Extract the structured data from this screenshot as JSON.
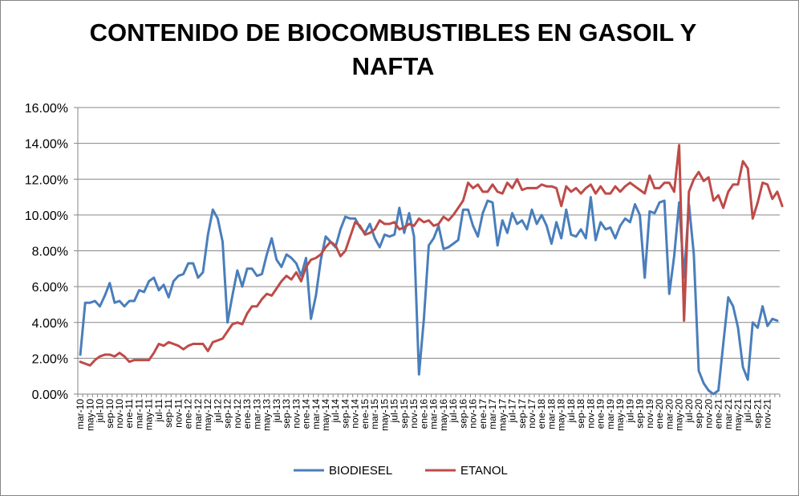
{
  "chart_data": {
    "type": "line",
    "title_lines": [
      "CONTENIDO DE BIOCOMBUSTIBLES EN GASOIL Y",
      "NAFTA"
    ],
    "xlabel": "",
    "ylabel": "",
    "ylim": [
      0,
      0.16
    ],
    "y_ticks": [
      "0.00%",
      "2.00%",
      "4.00%",
      "6.00%",
      "8.00%",
      "10.00%",
      "12.00%",
      "14.00%",
      "16.00%"
    ],
    "x_tick_labels": [
      "mar-10",
      "may-10",
      "jul-10",
      "sep-10",
      "nov-10",
      "ene-11",
      "mar-11",
      "may-11",
      "jul-11",
      "sep-11",
      "nov-11",
      "ene-12",
      "mar-12",
      "may-12",
      "jul-12",
      "sep-12",
      "nov-12",
      "ene-13",
      "mar-13",
      "may-13",
      "jul-13",
      "sep-13",
      "nov-13",
      "ene-14",
      "mar-14",
      "may-14",
      "jul-14",
      "sep-14",
      "nov-14",
      "ene-15",
      "mar-15",
      "may-15",
      "jul-15",
      "sep-15",
      "nov-15",
      "ene-16",
      "mar-16",
      "may-16",
      "jul-16",
      "sep-16",
      "nov-16",
      "ene-17",
      "mar-17",
      "may-17",
      "jul-17",
      "sep-17",
      "nov-17",
      "ene-18",
      "mar-18",
      "may-18",
      "jul-18",
      "sep-18",
      "nov-18",
      "ene-19",
      "mar-19",
      "may-19",
      "jul-19",
      "sep-19",
      "nov-19",
      "ene-20",
      "mar-20",
      "may-20",
      "jul-20",
      "sep-20",
      "nov-20",
      "ene-21",
      "mar-21",
      "may-21",
      "jul-21",
      "sep-21",
      "nov-21"
    ],
    "grid": "horizontal",
    "legend_position": "bottom",
    "series": [
      {
        "name": "BIODIESEL",
        "color": "#4A7EBB",
        "values": [
          0.022,
          0.051,
          0.051,
          0.052,
          0.049,
          0.055,
          0.062,
          0.051,
          0.052,
          0.049,
          0.052,
          0.052,
          0.058,
          0.057,
          0.063,
          0.065,
          0.058,
          0.061,
          0.054,
          0.063,
          0.066,
          0.067,
          0.073,
          0.073,
          0.065,
          0.068,
          0.089,
          0.103,
          0.098,
          0.085,
          0.04,
          0.055,
          0.069,
          0.06,
          0.07,
          0.07,
          0.066,
          0.067,
          0.078,
          0.087,
          0.075,
          0.071,
          0.078,
          0.076,
          0.073,
          0.066,
          0.076,
          0.042,
          0.055,
          0.075,
          0.088,
          0.085,
          0.082,
          0.092,
          0.099,
          0.098,
          0.098,
          0.093,
          0.09,
          0.095,
          0.087,
          0.082,
          0.089,
          0.088,
          0.089,
          0.104,
          0.09,
          0.101,
          0.088,
          0.011,
          0.042,
          0.083,
          0.087,
          0.094,
          0.081,
          0.082,
          0.084,
          0.086,
          0.103,
          0.103,
          0.094,
          0.088,
          0.101,
          0.108,
          0.107,
          0.083,
          0.097,
          0.09,
          0.101,
          0.095,
          0.097,
          0.092,
          0.103,
          0.095,
          0.1,
          0.094,
          0.084,
          0.096,
          0.087,
          0.103,
          0.089,
          0.088,
          0.092,
          0.087,
          0.11,
          0.086,
          0.096,
          0.092,
          0.093,
          0.087,
          0.094,
          0.098,
          0.096,
          0.106,
          0.1,
          0.065,
          0.102,
          0.101,
          0.107,
          0.108,
          0.056,
          0.077,
          0.107,
          0.065,
          0.106,
          0.078,
          0.013,
          0.006,
          0.002,
          0.0,
          0.002,
          0.028,
          0.054,
          0.049,
          0.037,
          0.015,
          0.008,
          0.04,
          0.037,
          0.049,
          0.038,
          0.042,
          0.041
        ]
      },
      {
        "name": "ETANOL",
        "color": "#BE4B48",
        "values": [
          0.018,
          0.017,
          0.016,
          0.019,
          0.021,
          0.022,
          0.022,
          0.021,
          0.023,
          0.021,
          0.018,
          0.019,
          0.019,
          0.019,
          0.019,
          0.023,
          0.028,
          0.027,
          0.029,
          0.028,
          0.027,
          0.025,
          0.027,
          0.028,
          0.028,
          0.028,
          0.024,
          0.029,
          0.03,
          0.031,
          0.035,
          0.039,
          0.04,
          0.039,
          0.045,
          0.049,
          0.049,
          0.053,
          0.056,
          0.055,
          0.059,
          0.063,
          0.066,
          0.064,
          0.068,
          0.063,
          0.071,
          0.075,
          0.076,
          0.078,
          0.082,
          0.085,
          0.083,
          0.077,
          0.08,
          0.088,
          0.096,
          0.094,
          0.089,
          0.09,
          0.092,
          0.097,
          0.095,
          0.095,
          0.096,
          0.092,
          0.093,
          0.095,
          0.094,
          0.098,
          0.096,
          0.097,
          0.094,
          0.095,
          0.099,
          0.097,
          0.1,
          0.104,
          0.108,
          0.118,
          0.115,
          0.117,
          0.113,
          0.113,
          0.117,
          0.113,
          0.112,
          0.118,
          0.115,
          0.12,
          0.114,
          0.115,
          0.115,
          0.115,
          0.117,
          0.116,
          0.116,
          0.115,
          0.105,
          0.116,
          0.113,
          0.115,
          0.112,
          0.115,
          0.117,
          0.112,
          0.116,
          0.112,
          0.112,
          0.116,
          0.113,
          0.116,
          0.118,
          0.116,
          0.114,
          0.112,
          0.122,
          0.115,
          0.115,
          0.118,
          0.118,
          0.113,
          0.139,
          0.041,
          0.113,
          0.12,
          0.124,
          0.119,
          0.121,
          0.108,
          0.111,
          0.104,
          0.113,
          0.117,
          0.117,
          0.13,
          0.126,
          0.098,
          0.107,
          0.118,
          0.117,
          0.109,
          0.113,
          0.105
        ]
      }
    ]
  }
}
